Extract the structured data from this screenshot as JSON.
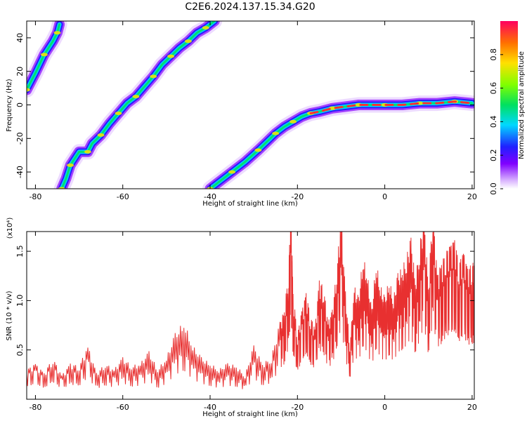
{
  "chart_data": [
    {
      "type": "heatmap",
      "title": "C2E6.2024.137.15.34.G20",
      "xlabel": "Height of straight line (km)",
      "ylabel": "Frequency (Hz)",
      "xlim": [
        -82,
        20.5
      ],
      "ylim": [
        -50,
        50
      ],
      "xticks": [
        "-80",
        "-60",
        "-40",
        "-20",
        "0",
        "20"
      ],
      "yticks": [
        "40",
        "20",
        "0",
        "-20",
        "-40"
      ],
      "grid": false,
      "colorbar": {
        "label": "Normalized spectral amplitude",
        "range": [
          0,
          1
        ],
        "ticks": [
          "0.0",
          "0.2",
          "0.4",
          "0.6",
          "0.8"
        ]
      },
      "traces": [
        {
          "points": [
            [
              -82,
              9
            ],
            [
              -80,
              19
            ],
            [
              -78,
              30
            ],
            [
              -76,
              38
            ],
            [
              -75,
              43
            ],
            [
              -74.5,
              48
            ]
          ]
        },
        {
          "points": [
            [
              -74,
              -50
            ],
            [
              -73,
              -44
            ],
            [
              -72,
              -36
            ],
            [
              -70,
              -28
            ],
            [
              -68,
              -28
            ],
            [
              -67,
              -23
            ],
            [
              -65,
              -18
            ],
            [
              -63,
              -11
            ],
            [
              -61,
              -5
            ],
            [
              -59,
              1
            ],
            [
              -57,
              5
            ],
            [
              -55,
              11
            ],
            [
              -53,
              17
            ],
            [
              -51,
              24
            ],
            [
              -49,
              29
            ],
            [
              -47,
              34
            ],
            [
              -45,
              38
            ],
            [
              -43,
              43
            ],
            [
              -41,
              46
            ],
            [
              -39,
              50
            ]
          ]
        },
        {
          "points": [
            [
              -40,
              -50
            ],
            [
              -38,
              -46
            ],
            [
              -35,
              -40
            ],
            [
              -32,
              -34
            ],
            [
              -29,
              -27
            ],
            [
              -27,
              -22
            ],
            [
              -25,
              -17
            ],
            [
              -23,
              -13
            ],
            [
              -21,
              -10
            ],
            [
              -19,
              -7
            ],
            [
              -17,
              -5
            ],
            [
              -15,
              -4
            ],
            [
              -12,
              -2
            ],
            [
              -9,
              -1
            ],
            [
              -6,
              0
            ],
            [
              -3,
              0
            ],
            [
              0,
              0
            ],
            [
              4,
              0
            ],
            [
              8,
              1
            ],
            [
              12,
              1
            ],
            [
              16,
              2
            ],
            [
              20,
              1
            ]
          ]
        }
      ]
    },
    {
      "type": "line",
      "xlabel": "Height of straight line (km)",
      "ylabel": "SNR (10 * v/v)",
      "scale_label": "(x10⁴)",
      "xlim": [
        -82,
        20.5
      ],
      "ylim": [
        0,
        1.7
      ],
      "xticks": [
        "-80",
        "-60",
        "-40",
        "-20",
        "0",
        "20"
      ],
      "yticks": [
        "0.5",
        "1.0",
        "1.5"
      ],
      "series": [
        {
          "color": "#e83030",
          "x": [
            -82,
            -80,
            -78,
            -76,
            -74,
            -72,
            -70,
            -68,
            -66,
            -64,
            -62,
            -60,
            -58,
            -56,
            -54,
            -52,
            -50,
            -48,
            -46,
            -44,
            -42,
            -40,
            -38,
            -36,
            -34,
            -32,
            -30,
            -28,
            -26,
            -24,
            -23,
            -22,
            -21.5,
            -21,
            -20,
            -19,
            -18,
            -17,
            -16,
            -15,
            -14,
            -13,
            -12,
            -11,
            -10,
            -9,
            -8,
            -7,
            -6,
            -5,
            -4,
            -3,
            -2,
            -1,
            0,
            1,
            2,
            3,
            4,
            5,
            6,
            7,
            8,
            9,
            10,
            11,
            12,
            13,
            14,
            15,
            16,
            17,
            18,
            19,
            20,
            20.5
          ],
          "y": [
            0.25,
            0.3,
            0.22,
            0.35,
            0.2,
            0.3,
            0.28,
            0.45,
            0.22,
            0.3,
            0.25,
            0.35,
            0.28,
            0.3,
            0.4,
            0.25,
            0.35,
            0.55,
            0.65,
            0.45,
            0.35,
            0.3,
            0.25,
            0.3,
            0.28,
            0.2,
            0.45,
            0.3,
            0.35,
            0.65,
            0.75,
            1.1,
            1.68,
            0.9,
            0.55,
            0.75,
            0.9,
            0.7,
            0.6,
            1.0,
            0.95,
            0.65,
            0.75,
            1.1,
            1.55,
            0.9,
            0.45,
            0.95,
            0.85,
            1.2,
            1.05,
            0.75,
            1.15,
            0.95,
            0.85,
            1.0,
            0.85,
            1.05,
            1.1,
            1.2,
            1.35,
            1.0,
            1.3,
            1.55,
            0.95,
            1.65,
            1.05,
            1.15,
            1.25,
            1.3,
            1.35,
            1.15,
            1.25,
            1.1,
            1.15,
            1.15
          ]
        }
      ]
    }
  ]
}
